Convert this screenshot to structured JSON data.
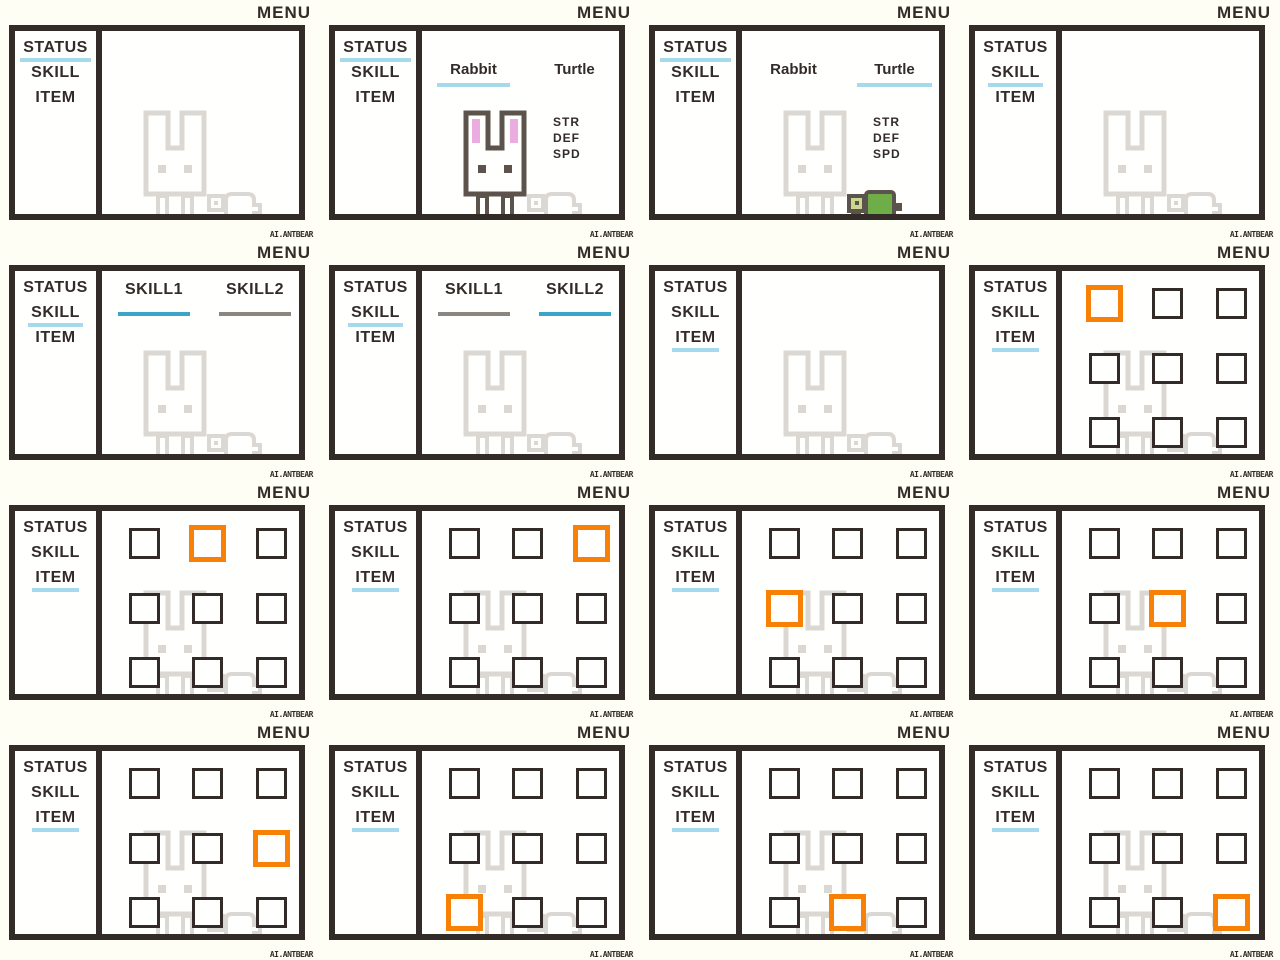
{
  "app": {
    "menu_title": "MENU",
    "credit": "AI.ANTBEAR"
  },
  "colors": {
    "background": "#FFFEF4",
    "panel_white": "#FFFFFD",
    "ink": "#332B28",
    "active_underline_blue": "#A5D9EC",
    "skill_active_bar_blue": "#3BA4C9",
    "skill_inactive_bar_gray": "#8C8681",
    "selected_item_orange": "#F78106",
    "watermark_gray": "#DBD8D3",
    "sprite_outline": "#5C534D",
    "rabbit_ear_pink": "#EBADDF",
    "turtle_shell_green": "#6FAD49",
    "turtle_head_green": "#C9D88C"
  },
  "sidebar": {
    "items": [
      "STATUS",
      "SKILL",
      "ITEM"
    ]
  },
  "status_screen": {
    "tabs": [
      "Rabbit",
      "Turtle"
    ],
    "stats": [
      "STR",
      "DEF",
      "SPD"
    ]
  },
  "skill_screen": {
    "tabs": [
      "SKILL1",
      "SKILL2"
    ]
  },
  "item_screen": {
    "rows": 3,
    "cols": 3
  },
  "panels": [
    {
      "sidebar_active": 0,
      "content": "empty",
      "active_tab": null,
      "selected_item": null
    },
    {
      "sidebar_active": 0,
      "content": "status",
      "active_tab": 0,
      "selected_item": null
    },
    {
      "sidebar_active": 0,
      "content": "status",
      "active_tab": 1,
      "selected_item": null
    },
    {
      "sidebar_active": 1,
      "content": "empty",
      "active_tab": null,
      "selected_item": null
    },
    {
      "sidebar_active": 1,
      "content": "skill",
      "active_tab": 0,
      "selected_item": null
    },
    {
      "sidebar_active": 1,
      "content": "skill",
      "active_tab": 1,
      "selected_item": null
    },
    {
      "sidebar_active": 2,
      "content": "empty",
      "active_tab": null,
      "selected_item": null
    },
    {
      "sidebar_active": 2,
      "content": "items",
      "active_tab": null,
      "selected_item": 0
    },
    {
      "sidebar_active": 2,
      "content": "items",
      "active_tab": null,
      "selected_item": 1
    },
    {
      "sidebar_active": 2,
      "content": "items",
      "active_tab": null,
      "selected_item": 2
    },
    {
      "sidebar_active": 2,
      "content": "items",
      "active_tab": null,
      "selected_item": 3
    },
    {
      "sidebar_active": 2,
      "content": "items",
      "active_tab": null,
      "selected_item": 4
    },
    {
      "sidebar_active": 2,
      "content": "items",
      "active_tab": null,
      "selected_item": 5
    },
    {
      "sidebar_active": 2,
      "content": "items",
      "active_tab": null,
      "selected_item": 6
    },
    {
      "sidebar_active": 2,
      "content": "items",
      "active_tab": null,
      "selected_item": 7
    },
    {
      "sidebar_active": 2,
      "content": "items",
      "active_tab": null,
      "selected_item": 8
    }
  ]
}
